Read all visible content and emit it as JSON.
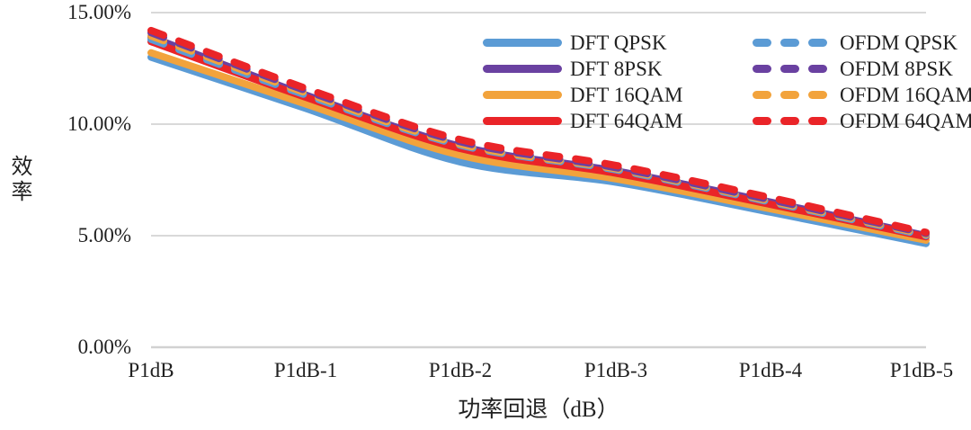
{
  "chart_data": {
    "type": "line",
    "title": "",
    "xlabel": "功率回退（dB）",
    "ylabel": "效率",
    "categories": [
      "P1dB",
      "P1dB-1",
      "P1dB-2",
      "P1dB-3",
      "P1dB-4",
      "P1dB-5"
    ],
    "y_tick_labels": [
      "15.00%",
      "10.00%",
      "5.00%",
      "0.00%"
    ],
    "y_tick_values": [
      15,
      10,
      5,
      0
    ],
    "ylim": [
      0,
      15
    ],
    "grid": true,
    "gridline_color": "#d9d9d9",
    "axis_line_color": "#d2d2d2",
    "legend_position": "top-right-inside",
    "series": [
      {
        "name": "DFT QPSK",
        "color": "#5b9bd5",
        "dash": false,
        "values": [
          13.0,
          10.7,
          8.3,
          7.4,
          6.05,
          4.65
        ]
      },
      {
        "name": "DFT 8PSK",
        "color": "#6a41a1",
        "dash": false,
        "values": [
          13.9,
          11.3,
          9.0,
          7.9,
          6.5,
          5.0
        ]
      },
      {
        "name": "DFT 16QAM",
        "color": "#f2a33c",
        "dash": false,
        "values": [
          13.2,
          10.9,
          8.6,
          7.55,
          6.2,
          4.8
        ]
      },
      {
        "name": "DFT 64QAM",
        "color": "#ea2428",
        "dash": false,
        "values": [
          13.7,
          11.2,
          8.9,
          7.8,
          6.4,
          4.95
        ]
      },
      {
        "name": "OFDM QPSK",
        "color": "#5b9bd5",
        "dash": true,
        "values": [
          13.8,
          11.3,
          9.05,
          7.95,
          6.5,
          5.0
        ]
      },
      {
        "name": "OFDM 8PSK",
        "color": "#6a41a1",
        "dash": true,
        "values": [
          14.1,
          11.5,
          9.2,
          8.05,
          6.6,
          5.1
        ]
      },
      {
        "name": "OFDM 16QAM",
        "color": "#f2a33c",
        "dash": true,
        "values": [
          13.95,
          11.4,
          9.1,
          8.0,
          6.55,
          5.05
        ]
      },
      {
        "name": "OFDM 64QAM",
        "color": "#ea2428",
        "dash": true,
        "values": [
          14.2,
          11.6,
          9.3,
          8.15,
          6.7,
          5.15
        ]
      }
    ],
    "draw_order": [
      0,
      2,
      1,
      3,
      4,
      6,
      5,
      7
    ]
  }
}
